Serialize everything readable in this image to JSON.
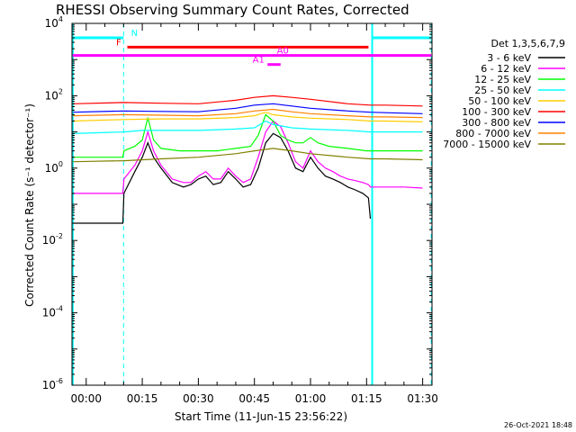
{
  "chart_data": {
    "type": "line",
    "title": "RHESSI Observing Summary Count Rates, Corrected",
    "xlabel": "Start Time (11-Jun-15 23:56:22)",
    "ylabel": "Corrected Count Rate (s⁻¹ detector⁻¹)",
    "yscale": "log",
    "ylim": [
      1e-06,
      10000.0
    ],
    "xlim_minutes": [
      -3.8,
      92.5
    ],
    "x_ticks": [
      {
        "t": 0,
        "label": "00:00"
      },
      {
        "t": 15,
        "label": "00:15"
      },
      {
        "t": 30,
        "label": "00:30"
      },
      {
        "t": 45,
        "label": "00:45"
      },
      {
        "t": 60,
        "label": "01:00"
      },
      {
        "t": 75,
        "label": "01:15"
      },
      {
        "t": 90,
        "label": "01:30"
      }
    ],
    "y_ticks": [
      {
        "v": 1e-06,
        "base": "10",
        "exp": "-6"
      },
      {
        "v": 0.0001,
        "base": "10",
        "exp": "-4"
      },
      {
        "v": 0.01,
        "base": "10",
        "exp": "-2"
      },
      {
        "v": 1,
        "base": "10",
        "exp": "0"
      },
      {
        "v": 100,
        "base": "10",
        "exp": "2"
      },
      {
        "v": 10000,
        "base": "10",
        "exp": "4"
      }
    ],
    "legend_title": "Det 1,3,5,6,7,9",
    "legend_position": "right",
    "series": [
      {
        "name": "3 - 6 keV",
        "color": "#000000",
        "x": [
          -3.5,
          9.8,
          10.1,
          13,
          15,
          16.5,
          18,
          20,
          23,
          26,
          28,
          30,
          32,
          34,
          36,
          38,
          40,
          42,
          44,
          46,
          48,
          50,
          52,
          54,
          56,
          58,
          60,
          62,
          64,
          66,
          68,
          70,
          72,
          74,
          75.5,
          76
        ],
        "y": [
          0.03,
          0.03,
          0.2,
          0.8,
          2.0,
          5.0,
          2.0,
          1.0,
          0.4,
          0.3,
          0.35,
          0.5,
          0.6,
          0.35,
          0.4,
          0.8,
          0.5,
          0.3,
          0.35,
          1.0,
          5.0,
          9.0,
          7.0,
          3.0,
          1.0,
          0.8,
          2.0,
          1.0,
          0.6,
          0.5,
          0.4,
          0.3,
          0.25,
          0.2,
          0.15,
          0.04
        ]
      },
      {
        "name": "6 - 12 keV",
        "color": "#ff00ff",
        "x": [
          -3.5,
          9.8,
          10.1,
          13,
          15,
          16.5,
          18,
          20,
          23,
          26,
          28,
          30,
          32,
          34,
          36,
          38,
          40,
          42,
          44,
          46,
          48,
          50,
          52,
          54,
          56,
          58,
          60,
          62,
          64,
          66,
          68,
          70,
          72,
          74,
          75.5,
          76,
          80,
          85,
          90
        ],
        "y": [
          0.2,
          0.2,
          0.5,
          1.2,
          3.0,
          10.0,
          3.0,
          1.2,
          0.5,
          0.4,
          0.4,
          0.6,
          0.8,
          0.5,
          0.5,
          1.0,
          0.6,
          0.4,
          0.5,
          2.0,
          10.0,
          20.0,
          14.0,
          5.0,
          1.5,
          1.0,
          3.0,
          1.5,
          1.0,
          0.8,
          0.6,
          0.5,
          0.45,
          0.4,
          0.35,
          0.3,
          0.3,
          0.3,
          0.28
        ]
      },
      {
        "name": "12 - 25 keV",
        "color": "#00ff00",
        "x": [
          -3.5,
          9.8,
          10.1,
          13,
          15,
          16.5,
          18,
          20,
          25,
          30,
          35,
          40,
          44,
          46,
          48,
          50,
          52,
          54,
          56,
          58,
          60,
          62,
          65,
          70,
          75,
          76,
          80,
          85,
          90
        ],
        "y": [
          2.0,
          2.0,
          3.0,
          4.0,
          6.0,
          25.0,
          6.0,
          3.5,
          3.0,
          3.0,
          3.0,
          3.5,
          4.0,
          8.0,
          30.0,
          20.0,
          8.0,
          6.0,
          5.0,
          5.0,
          7.0,
          5.0,
          4.0,
          3.5,
          3.0,
          3.0,
          3.0,
          3.0,
          3.0
        ]
      },
      {
        "name": "25 - 50 keV",
        "color": "#00ffff",
        "x": [
          -3.5,
          10,
          15,
          20,
          30,
          40,
          45,
          48,
          50,
          55,
          60,
          70,
          76,
          80,
          90
        ],
        "y": [
          9.0,
          10.0,
          11.0,
          11.0,
          11.0,
          12.0,
          13.0,
          20.0,
          16.0,
          13.0,
          12.0,
          11.0,
          10.0,
          10.0,
          10.0
        ]
      },
      {
        "name": "50 - 100 keV",
        "color": "#ffcc00",
        "x": [
          -3.5,
          10,
          20,
          30,
          40,
          45,
          48,
          50,
          55,
          60,
          70,
          76,
          80,
          90
        ],
        "y": [
          20.0,
          22.0,
          23.0,
          23.0,
          25.0,
          28.0,
          35.0,
          30.0,
          26.0,
          24.0,
          22.0,
          20.0,
          20.0,
          19.0
        ]
      },
      {
        "name": "100 - 300 keV",
        "color": "#ff0000",
        "x": [
          -3.5,
          10,
          20,
          30,
          40,
          45,
          50,
          55,
          60,
          70,
          76,
          80,
          90
        ],
        "y": [
          60.0,
          65.0,
          62.0,
          60.0,
          75.0,
          90.0,
          100.0,
          90.0,
          80.0,
          60.0,
          55.0,
          55.0,
          52.0
        ]
      },
      {
        "name": "300 - 800 keV",
        "color": "#0000ff",
        "x": [
          -3.5,
          10,
          20,
          30,
          40,
          45,
          50,
          55,
          60,
          70,
          76,
          80,
          90
        ],
        "y": [
          35.0,
          38.0,
          37.0,
          36.0,
          45.0,
          55.0,
          60.0,
          52.0,
          45.0,
          38.0,
          35.0,
          34.0,
          32.0
        ]
      },
      {
        "name": "800 - 7000 keV",
        "color": "#ff8000",
        "x": [
          -3.5,
          10,
          20,
          30,
          40,
          45,
          50,
          55,
          60,
          70,
          76,
          80,
          90
        ],
        "y": [
          28.0,
          30.0,
          29.0,
          28.0,
          32.0,
          38.0,
          42.0,
          36.0,
          32.0,
          28.0,
          26.0,
          26.0,
          25.0
        ]
      },
      {
        "name": "7000 - 15000 keV",
        "color": "#808000",
        "x": [
          -3.5,
          10,
          20,
          30,
          40,
          45,
          50,
          55,
          60,
          70,
          76,
          80,
          90
        ],
        "y": [
          1.5,
          1.6,
          1.8,
          2.0,
          2.5,
          3.0,
          3.5,
          3.0,
          2.5,
          2.0,
          1.8,
          1.8,
          1.7
        ]
      }
    ],
    "flag_bars": [
      {
        "label": "N",
        "color": "#00ffff",
        "y_level": 4000,
        "segments": [
          [
            -3.6,
            10
          ],
          [
            76.5,
            92.3
          ]
        ],
        "label_at": 12
      },
      {
        "label": "F",
        "color": "#ff0000",
        "y_level": 2200,
        "segments": [
          [
            11,
            75.5
          ]
        ],
        "label_at": 8
      },
      {
        "label": "A0",
        "color": "#ff00ff",
        "y_level": 1300,
        "segments": [
          [
            -3.6,
            92.3
          ]
        ],
        "label_at": 51
      },
      {
        "label": "A1",
        "color": "#ff00ff",
        "y_level": 730,
        "segments": [
          [
            48.5,
            52
          ]
        ],
        "label_at": 44.5
      }
    ],
    "markers": {
      "color": "#00ffff",
      "solid_at": [
        -3.6,
        76.5
      ],
      "dashed_at": [
        10,
        92.3
      ]
    }
  },
  "footer": {
    "timestamp": "26-Oct-2021 18:48"
  }
}
